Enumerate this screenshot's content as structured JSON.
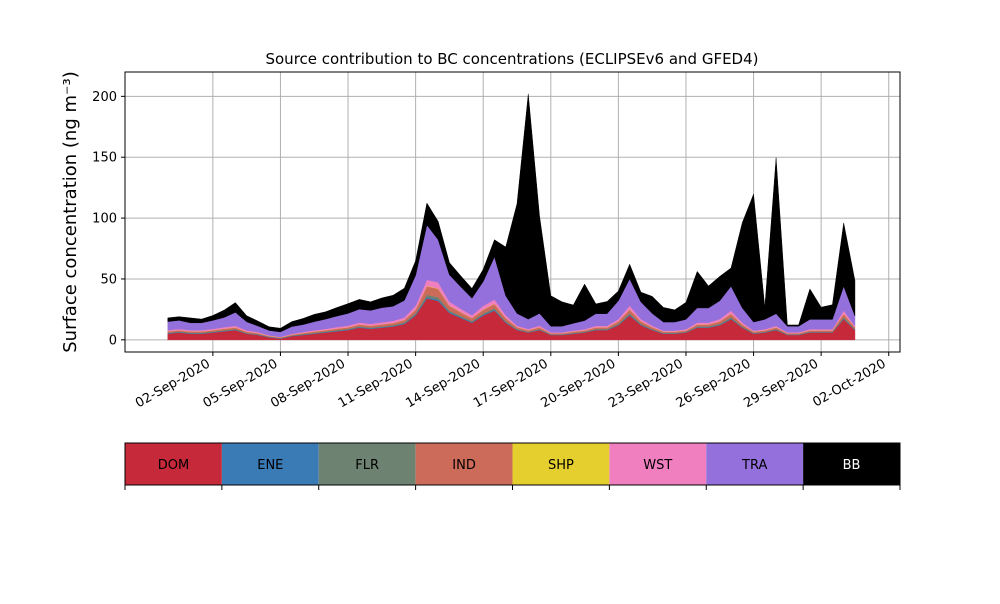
{
  "chart_data": {
    "type": "area",
    "stacked": true,
    "title": "Source contribution to BC concentrations (ECLIPSEv6 and GFED4)",
    "ylabel": "Surface concentration (ng m⁻³)",
    "xlabel": "",
    "ylim": [
      -10,
      220
    ],
    "xlim_days": [
      -3.9,
      30.5
    ],
    "yticks": [
      0,
      50,
      100,
      150,
      200
    ],
    "x_tick_labels": [
      "02-Sep-2020",
      "05-Sep-2020",
      "08-Sep-2020",
      "11-Sep-2020",
      "14-Sep-2020",
      "17-Sep-2020",
      "20-Sep-2020",
      "23-Sep-2020",
      "26-Sep-2020",
      "29-Sep-2020",
      "02-Oct-2020"
    ],
    "x_tick_days": [
      0,
      3,
      6,
      9,
      12,
      15,
      18,
      21,
      24,
      27,
      30
    ],
    "grid": true,
    "legend_position": "bottom",
    "x_days": [
      -2.0,
      -1.5,
      -1.0,
      -0.5,
      0.0,
      0.5,
      1.0,
      1.5,
      2.0,
      2.5,
      3.0,
      3.5,
      4.0,
      4.5,
      5.0,
      5.5,
      6.0,
      6.5,
      7.0,
      7.5,
      8.0,
      8.5,
      9.0,
      9.5,
      10.0,
      10.5,
      11.0,
      11.5,
      12.0,
      12.5,
      13.0,
      13.5,
      14.0,
      14.5,
      15.0,
      15.5,
      16.0,
      16.5,
      17.0,
      17.5,
      18.0,
      18.5,
      19.0,
      19.5,
      20.0,
      20.5,
      21.0,
      21.5,
      22.0,
      22.5,
      23.0,
      23.5,
      24.0,
      24.5,
      25.0,
      25.5,
      26.0,
      26.5,
      27.0,
      27.5,
      28.0,
      28.5
    ],
    "series": [
      {
        "name": "DOM",
        "color": "#c62a3a",
        "values": [
          5,
          6,
          5,
          5,
          6,
          7,
          8,
          5,
          4,
          2,
          1,
          3,
          4,
          5,
          6,
          7,
          8,
          10,
          9,
          10,
          11,
          13,
          20,
          34,
          32,
          22,
          18,
          14,
          20,
          24,
          14,
          8,
          6,
          8,
          4,
          4,
          5,
          6,
          8,
          8,
          12,
          20,
          12,
          8,
          5,
          5,
          6,
          10,
          10,
          12,
          17,
          10,
          5,
          6,
          8,
          4,
          4,
          6,
          6,
          6,
          17,
          8
        ]
      },
      {
        "name": "ENE",
        "color": "#3a7ab5",
        "values": [
          0.4,
          0.4,
          0.4,
          0.4,
          0.4,
          0.4,
          0.4,
          0.3,
          0.3,
          0.3,
          0.3,
          0.3,
          0.4,
          0.4,
          0.4,
          0.5,
          0.5,
          0.5,
          0.5,
          0.5,
          0.5,
          0.6,
          0.8,
          1,
          1,
          0.8,
          0.7,
          0.6,
          0.7,
          0.8,
          0.6,
          0.4,
          0.3,
          0.4,
          0.3,
          0.3,
          0.3,
          0.3,
          0.4,
          0.4,
          0.5,
          0.7,
          0.5,
          0.4,
          0.3,
          0.3,
          0.3,
          0.4,
          0.4,
          0.5,
          0.6,
          0.4,
          0.3,
          0.3,
          0.4,
          0.3,
          0.3,
          0.3,
          0.3,
          0.3,
          0.6,
          0.4
        ]
      },
      {
        "name": "FLR",
        "color": "#6d8270",
        "values": [
          0.5,
          0.5,
          0.5,
          0.5,
          0.5,
          0.5,
          0.5,
          0.4,
          0.4,
          0.3,
          0.3,
          0.3,
          0.4,
          0.4,
          0.5,
          0.5,
          0.5,
          0.6,
          0.6,
          0.6,
          0.6,
          0.7,
          1,
          2,
          2,
          1.2,
          1,
          0.8,
          1,
          1.2,
          0.8,
          0.5,
          0.4,
          0.5,
          0.3,
          0.3,
          0.4,
          0.4,
          0.5,
          0.5,
          0.7,
          1.2,
          0.7,
          0.5,
          0.4,
          0.4,
          0.4,
          0.6,
          0.6,
          0.7,
          1,
          0.6,
          0.4,
          0.4,
          0.5,
          0.3,
          0.3,
          0.4,
          0.4,
          0.4,
          1,
          0.5
        ]
      },
      {
        "name": "IND",
        "color": "#cd6b5a",
        "values": [
          1,
          1,
          1,
          1,
          1,
          1.2,
          1.3,
          1,
          0.8,
          0.5,
          0.4,
          0.6,
          0.8,
          1,
          1,
          1.2,
          1.3,
          1.5,
          1.5,
          1.6,
          1.7,
          2,
          3,
          7,
          7,
          4,
          3,
          2.5,
          3,
          3.5,
          2.5,
          1.5,
          1.2,
          1.5,
          0.8,
          0.8,
          1,
          1,
          1.3,
          1.3,
          2,
          3,
          2,
          1.5,
          1,
          1,
          1,
          1.6,
          1.6,
          2,
          2.7,
          1.6,
          1,
          1,
          1.3,
          0.8,
          0.8,
          1,
          1,
          1,
          2.7,
          1.4
        ]
      },
      {
        "name": "SHP",
        "color": "#e5cf2e",
        "values": [
          0.1,
          0.1,
          0.1,
          0.1,
          0.1,
          0.1,
          0.1,
          0.1,
          0.1,
          0.1,
          0.1,
          0.1,
          0.1,
          0.1,
          0.1,
          0.1,
          0.1,
          0.1,
          0.1,
          0.1,
          0.1,
          0.1,
          0.2,
          0.3,
          0.3,
          0.2,
          0.2,
          0.1,
          0.2,
          0.2,
          0.1,
          0.1,
          0.1,
          0.1,
          0.1,
          0.1,
          0.1,
          0.1,
          0.1,
          0.1,
          0.1,
          0.2,
          0.1,
          0.1,
          0.1,
          0.1,
          0.1,
          0.1,
          0.1,
          0.1,
          0.2,
          0.1,
          0.1,
          0.1,
          0.1,
          0.1,
          0.1,
          0.1,
          0.1,
          0.1,
          0.2,
          0.1
        ]
      },
      {
        "name": "WST",
        "color": "#f07fbf",
        "values": [
          1,
          1,
          1,
          1,
          1,
          1.2,
          1.3,
          1,
          0.8,
          0.5,
          0.4,
          0.6,
          0.8,
          1,
          1,
          1.2,
          1.3,
          1.5,
          1.5,
          1.6,
          1.7,
          2,
          3,
          5,
          5,
          3.2,
          2.7,
          2.2,
          3,
          3.5,
          2.2,
          1.2,
          1,
          1.2,
          0.7,
          0.7,
          0.8,
          1,
          1.2,
          1.2,
          1.8,
          3,
          1.8,
          1.2,
          0.8,
          0.8,
          1,
          1.5,
          1.5,
          1.8,
          2.5,
          1.5,
          0.8,
          1,
          1.2,
          0.7,
          0.7,
          1,
          1,
          1,
          2.5,
          1.2
        ]
      },
      {
        "name": "TRA",
        "color": "#9370db",
        "values": [
          7,
          7,
          6,
          6,
          7,
          8,
          11,
          7,
          5,
          4,
          4,
          6,
          6,
          7,
          8,
          9,
          10,
          11,
          11,
          12,
          12,
          14,
          25,
          45,
          35,
          22,
          18,
          14,
          20,
          35,
          16,
          10,
          8,
          10,
          5,
          5,
          6,
          7,
          10,
          10,
          15,
          22,
          14,
          10,
          7,
          7,
          8,
          12,
          12,
          15,
          20,
          12,
          7,
          8,
          10,
          5,
          5,
          8,
          8,
          8,
          20,
          8
        ]
      },
      {
        "name": "BB",
        "color": "#000000",
        "values": [
          3,
          3,
          4,
          3,
          4,
          6,
          8,
          5,
          4,
          3,
          3,
          4,
          5,
          6,
          6,
          7,
          8,
          8,
          7,
          8,
          9,
          10,
          12,
          18,
          15,
          10,
          9,
          8,
          10,
          14,
          40,
          90,
          185,
          80,
          25,
          20,
          15,
          30,
          8,
          10,
          8,
          12,
          8,
          14,
          12,
          10,
          14,
          30,
          18,
          20,
          15,
          70,
          105,
          10,
          128,
          1,
          1,
          25,
          10,
          12,
          52,
          29
        ]
      }
    ]
  },
  "legend": {
    "items": [
      {
        "label": "DOM",
        "color": "#c62a3a",
        "text_color": "#000000"
      },
      {
        "label": "ENE",
        "color": "#3a7ab5",
        "text_color": "#000000"
      },
      {
        "label": "FLR",
        "color": "#6d8270",
        "text_color": "#000000"
      },
      {
        "label": "IND",
        "color": "#cd6b5a",
        "text_color": "#000000"
      },
      {
        "label": "SHP",
        "color": "#e5cf2e",
        "text_color": "#000000"
      },
      {
        "label": "WST",
        "color": "#f07fbf",
        "text_color": "#000000"
      },
      {
        "label": "TRA",
        "color": "#9370db",
        "text_color": "#000000"
      },
      {
        "label": "BB",
        "color": "#000000",
        "text_color": "#ffffff"
      }
    ]
  }
}
